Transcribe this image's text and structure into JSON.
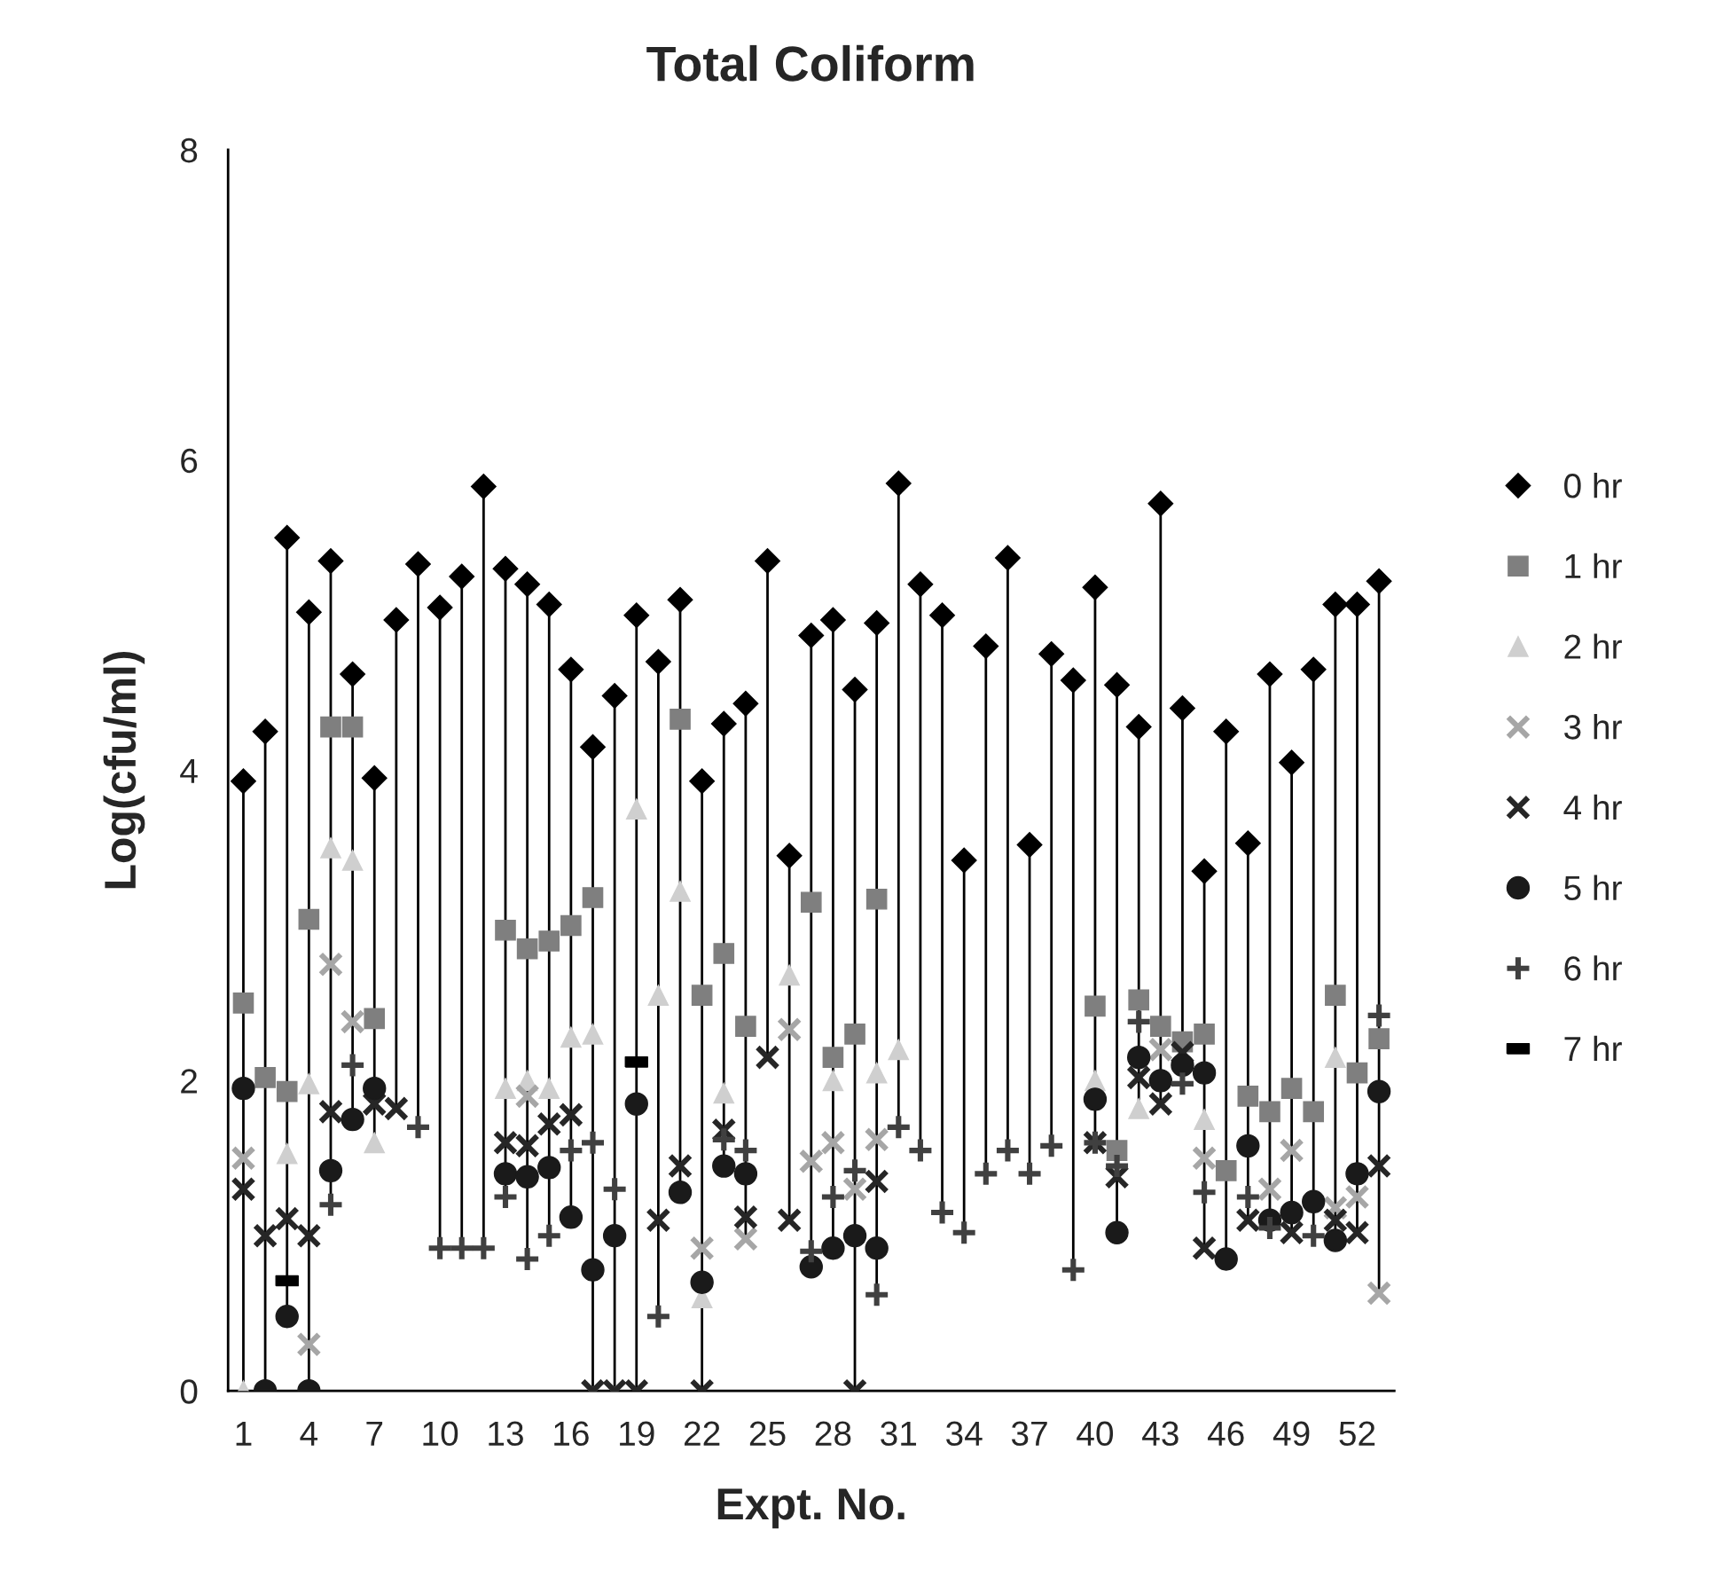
{
  "chart_data": {
    "type": "scatter",
    "title": "Total Coliform",
    "xlabel": "Expt. No.",
    "ylabel": "Log(cfu/ml)",
    "categories": [
      "1",
      null,
      null,
      "4",
      null,
      null,
      "7",
      null,
      null,
      "10",
      null,
      null,
      "13",
      null,
      null,
      "16",
      null,
      null,
      "19",
      null,
      null,
      "22",
      null,
      null,
      "25",
      null,
      null,
      "28",
      null,
      null,
      "31",
      null,
      null,
      "34",
      null,
      null,
      "37",
      null,
      null,
      "40",
      null,
      null,
      "43",
      null,
      null,
      "46",
      null,
      null,
      "49",
      null,
      null,
      "52",
      null
    ],
    "ylim": [
      0,
      8
    ],
    "yticks": [
      0,
      2,
      4,
      6,
      8
    ],
    "grid": false,
    "legend": "right",
    "series": [
      {
        "name": "0 hr",
        "color": "#000000",
        "marker": "diamond",
        "values": [
          3.93,
          4.25,
          5.5,
          5.02,
          5.35,
          4.62,
          3.95,
          4.97,
          5.33,
          5.05,
          5.25,
          5.83,
          5.3,
          5.2,
          5.07,
          4.65,
          4.15,
          4.48,
          5.0,
          4.7,
          5.1,
          3.93,
          4.3,
          4.43,
          5.35,
          3.45,
          4.87,
          4.97,
          4.52,
          4.95,
          5.85,
          5.2,
          5.0,
          3.42,
          4.8,
          5.37,
          3.52,
          4.75,
          4.58,
          5.18,
          4.55,
          4.28,
          5.72,
          4.4,
          3.35,
          4.25,
          3.53,
          4.62,
          4.05,
          4.65,
          5.07,
          5.07,
          5.22
        ]
      },
      {
        "name": "1 hr",
        "color": "#7f7f7f",
        "marker": "square",
        "values": [
          2.5,
          2.02,
          1.93,
          3.04,
          4.28,
          4.28,
          2.4,
          null,
          null,
          null,
          null,
          null,
          2.97,
          2.85,
          2.9,
          3.0,
          3.18,
          null,
          null,
          null,
          4.33,
          2.55,
          2.82,
          2.35,
          null,
          null,
          3.15,
          2.15,
          2.3,
          3.17,
          null,
          null,
          null,
          null,
          null,
          null,
          null,
          null,
          null,
          2.48,
          1.55,
          2.52,
          2.35,
          2.25,
          2.3,
          1.42,
          1.9,
          1.8,
          1.95,
          1.8,
          2.55,
          2.05,
          2.27
        ]
      },
      {
        "name": "2 hr",
        "color": "#cfcfcf",
        "marker": "triangle",
        "values": [
          0,
          null,
          1.53,
          1.98,
          3.5,
          3.42,
          1.6,
          null,
          null,
          null,
          null,
          null,
          1.95,
          2.0,
          1.95,
          2.28,
          2.3,
          null,
          3.75,
          2.55,
          3.22,
          0.6,
          1.92,
          null,
          null,
          2.68,
          null,
          2.0,
          null,
          2.05,
          2.2,
          null,
          null,
          null,
          null,
          null,
          null,
          null,
          null,
          2.0,
          null,
          1.82,
          null,
          null,
          1.75,
          null,
          null,
          null,
          null,
          null,
          2.15,
          null,
          null
        ]
      },
      {
        "name": "3 hr",
        "color": "#a6a6a6",
        "marker": "cross",
        "values": [
          1.5,
          null,
          null,
          0.3,
          2.75,
          2.38,
          null,
          null,
          null,
          null,
          null,
          null,
          null,
          1.9,
          null,
          null,
          0,
          0,
          null,
          null,
          null,
          0.92,
          null,
          0.98,
          null,
          2.33,
          1.48,
          1.6,
          1.3,
          1.62,
          null,
          null,
          null,
          null,
          null,
          null,
          null,
          null,
          null,
          null,
          null,
          null,
          2.2,
          null,
          1.5,
          null,
          null,
          1.3,
          1.55,
          null,
          1.18,
          1.25,
          0.63
        ]
      },
      {
        "name": "4 hr",
        "color": "#262626",
        "marker": "cross",
        "values": [
          1.3,
          1.0,
          1.11,
          1.0,
          1.8,
          null,
          1.85,
          1.82,
          null,
          null,
          null,
          null,
          1.6,
          1.58,
          1.72,
          1.78,
          0,
          0,
          0,
          1.1,
          1.45,
          0,
          1.68,
          1.12,
          2.15,
          1.1,
          null,
          null,
          0,
          1.35,
          null,
          null,
          null,
          null,
          null,
          null,
          null,
          null,
          null,
          1.6,
          1.38,
          2.02,
          1.85,
          2.18,
          0.92,
          null,
          1.1,
          null,
          1.02,
          null,
          1.1,
          1.02,
          1.45
        ]
      },
      {
        "name": "5 hr",
        "color": "#1a1a1a",
        "marker": "circle",
        "values": [
          1.95,
          0,
          0.48,
          0,
          1.42,
          1.75,
          1.95,
          null,
          null,
          null,
          null,
          null,
          1.4,
          1.38,
          1.44,
          1.12,
          0.78,
          1.0,
          1.85,
          null,
          1.28,
          0.7,
          1.45,
          1.4,
          null,
          null,
          0.8,
          0.92,
          1.0,
          0.92,
          null,
          null,
          null,
          null,
          null,
          null,
          null,
          null,
          null,
          1.88,
          1.02,
          2.15,
          2.0,
          2.1,
          2.05,
          0.85,
          1.58,
          1.1,
          1.15,
          1.22,
          0.97,
          1.4,
          1.93
        ]
      },
      {
        "name": "6 hr",
        "color": "#404040",
        "marker": "plus",
        "values": [
          null,
          null,
          null,
          null,
          1.2,
          2.1,
          null,
          null,
          1.7,
          0.92,
          0.92,
          0.92,
          1.25,
          0.85,
          1.0,
          1.55,
          1.6,
          1.3,
          null,
          0.48,
          null,
          null,
          1.62,
          1.55,
          null,
          null,
          0.9,
          1.25,
          1.42,
          0.62,
          1.7,
          1.55,
          1.15,
          1.02,
          1.4,
          1.55,
          1.4,
          1.58,
          0.78,
          1.6,
          1.45,
          2.38,
          null,
          1.98,
          1.28,
          null,
          1.25,
          1.05,
          null,
          1.0,
          null,
          null,
          2.42
        ]
      },
      {
        "name": "7 hr",
        "color": "#000000",
        "marker": "square",
        "values": [
          null,
          null,
          0.71,
          null,
          null,
          null,
          null,
          null,
          null,
          null,
          null,
          null,
          null,
          null,
          null,
          null,
          null,
          null,
          2.12,
          null,
          null,
          null,
          null,
          null,
          null,
          null,
          null,
          null,
          null,
          null,
          null,
          null,
          null,
          null,
          null,
          null,
          null,
          null,
          null,
          null,
          null,
          null,
          null,
          null,
          null,
          null,
          null,
          null,
          null,
          null,
          null,
          null,
          null
        ]
      }
    ]
  }
}
